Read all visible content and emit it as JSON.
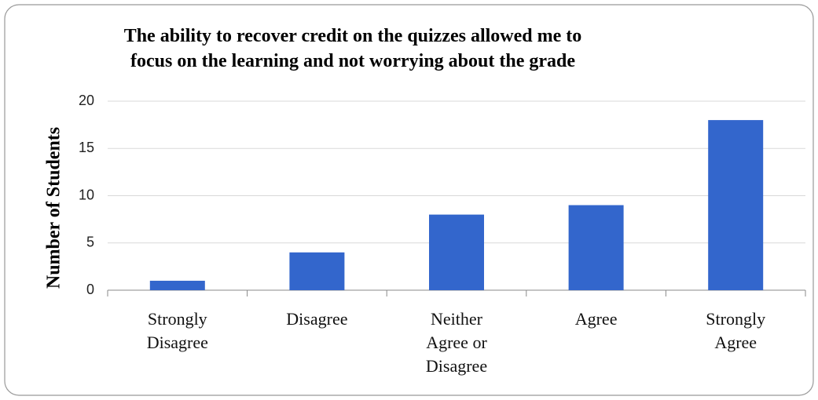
{
  "chart_data": {
    "type": "bar",
    "title": "The ability to recover credit on the quizzes allowed me to focus on the learning and not worrying about the grade",
    "y_label": "Number of Students",
    "categories": [
      "Strongly Disagree",
      "Disagree",
      "Neither Agree or Disagree",
      "Agree",
      "Strongly Agree"
    ],
    "values": [
      1,
      4,
      8,
      9,
      18
    ],
    "color": "#3366cc",
    "ylim": [
      0,
      20
    ],
    "yticks": [
      0,
      5,
      10,
      15,
      20
    ],
    "grid": true
  }
}
